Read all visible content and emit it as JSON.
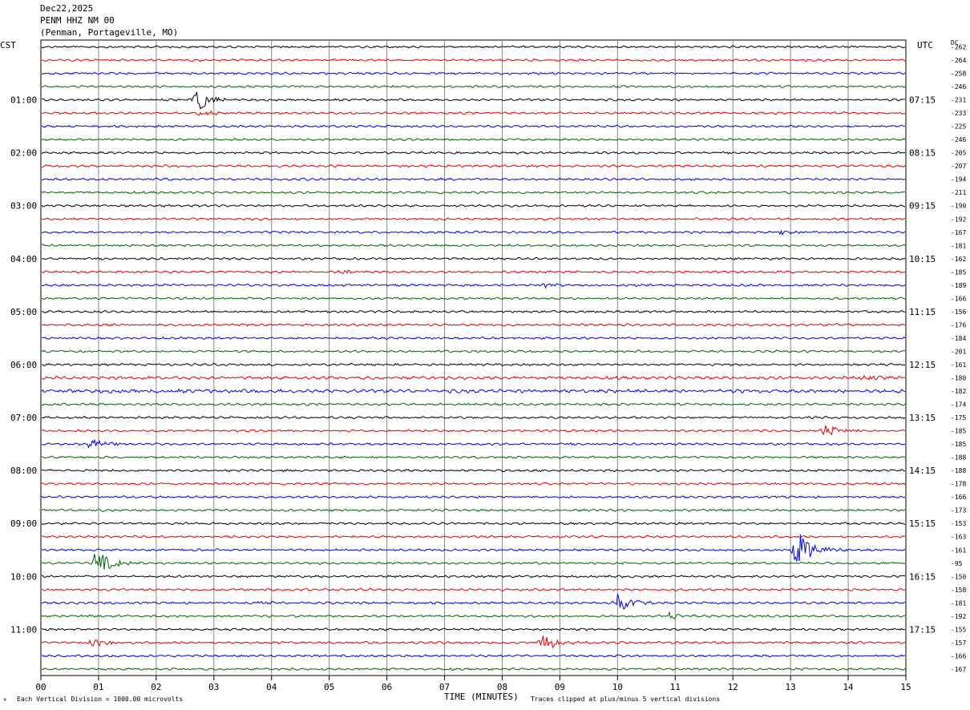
{
  "header": {
    "date": "Dec22,2025",
    "station": "PENM HHZ NM 00",
    "location": "(Penman, Portageville, MO)"
  },
  "left_zone": "CST",
  "right_zone": "UTC",
  "dc_label": "DC",
  "footer": {
    "scale_note": "Each Vertical Division = 1000.00 microvolts",
    "xlabel": "TIME (MINUTES)",
    "clip_note": "Traces clipped at plus/minus 5 vertical divisions"
  },
  "chart_data": {
    "type": "line",
    "xlabel": "TIME (MINUTES)",
    "xlim": [
      0,
      15
    ],
    "x_ticks": [
      "00",
      "01",
      "02",
      "03",
      "04",
      "05",
      "06",
      "07",
      "08",
      "09",
      "10",
      "11",
      "12",
      "13",
      "14",
      "15"
    ],
    "trace_colors": [
      "#000000",
      "#e00000",
      "#0000e0",
      "#006400"
    ],
    "rows_per_hour": 4,
    "left_hour_labels": [
      "01:00",
      "02:00",
      "03:00",
      "04:00",
      "05:00",
      "06:00",
      "07:00",
      "08:00",
      "09:00",
      "10:00",
      "11:00"
    ],
    "right_hour_labels": [
      "07:15",
      "08:15",
      "09:15",
      "10:15",
      "11:15",
      "12:15",
      "13:15",
      "14:15",
      "15:15",
      "16:15",
      "17:15"
    ],
    "first_labeled_row": 4,
    "dc_offsets": [
      -262,
      -264,
      -258,
      -246,
      -231,
      -233,
      -225,
      -246,
      -205,
      -207,
      -194,
      -211,
      -190,
      -192,
      -167,
      -181,
      -162,
      -185,
      -189,
      -166,
      -156,
      -176,
      -184,
      -201,
      -161,
      -180,
      -182,
      -174,
      -175,
      -185,
      -185,
      -188,
      -188,
      -178,
      -166,
      -173,
      -153,
      -163,
      -161,
      -95,
      -150,
      -158,
      -181,
      -192,
      -155,
      -157,
      -166,
      -167
    ],
    "noise_level": [
      1,
      1,
      1,
      1,
      1,
      1,
      1,
      1,
      1,
      1,
      1,
      1,
      1,
      1,
      1,
      1,
      1,
      1,
      1,
      1,
      1,
      1,
      1,
      1,
      1,
      1.4,
      1.6,
      1,
      1,
      1,
      1,
      1,
      1,
      1,
      1,
      1,
      1,
      1,
      1,
      1,
      1,
      1,
      1,
      1,
      1,
      1,
      1,
      1
    ],
    "events": [
      {
        "row": 4,
        "minute": 2.7,
        "amplitude": 2.6
      },
      {
        "row": 5,
        "minute": 2.75,
        "amplitude": 0.8
      },
      {
        "row": 10,
        "minute": 2.2,
        "amplitude": 0.3
      },
      {
        "row": 13,
        "minute": 11.6,
        "amplitude": 0.3
      },
      {
        "row": 14,
        "minute": 12.8,
        "amplitude": 0.5
      },
      {
        "row": 17,
        "minute": 5.2,
        "amplitude": 0.5
      },
      {
        "row": 18,
        "minute": 8.7,
        "amplitude": 0.5
      },
      {
        "row": 21,
        "minute": 13.8,
        "amplitude": 0.4
      },
      {
        "row": 25,
        "minute": 14.2,
        "amplitude": 0.6
      },
      {
        "row": 29,
        "minute": 13.6,
        "amplitude": 1.8
      },
      {
        "row": 30,
        "minute": 0.85,
        "amplitude": 1.7
      },
      {
        "row": 38,
        "minute": 13.1,
        "amplitude": 5.0
      },
      {
        "row": 39,
        "minute": 0.95,
        "amplitude": 3.2
      },
      {
        "row": 42,
        "minute": 3.8,
        "amplitude": 0.5
      },
      {
        "row": 42,
        "minute": 10.0,
        "amplitude": 2.2
      },
      {
        "row": 43,
        "minute": 10.9,
        "amplitude": 0.8
      },
      {
        "row": 45,
        "minute": 0.9,
        "amplitude": 1.2
      },
      {
        "row": 45,
        "minute": 8.7,
        "amplitude": 2.0
      }
    ]
  }
}
